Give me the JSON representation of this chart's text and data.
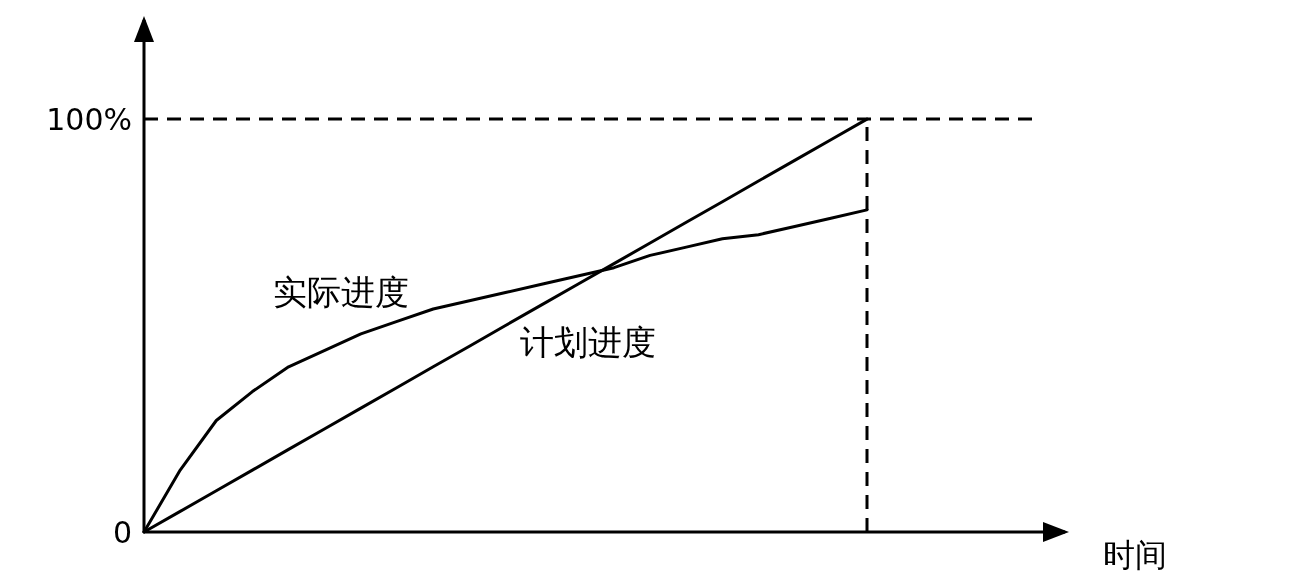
{
  "chart_data": {
    "type": "line",
    "annotations": [
      "时间"
    ],
    "categories": [
      null,
      null,
      null,
      null,
      null,
      null,
      null,
      null,
      null,
      null,
      null,
      null,
      null,
      null,
      null,
      null,
      null,
      null,
      null,
      null,
      null
    ],
    "series": [
      {
        "name": "实际进度",
        "color": "#000000",
        "values": [
          0,
          15,
          27,
          34,
          40,
          44,
          48,
          51,
          54,
          56,
          58,
          60,
          62,
          64,
          67,
          69,
          71,
          72,
          74,
          76,
          78
        ]
      },
      {
        "name": "计划进度",
        "color": "#000000",
        "values": [
          0,
          5,
          10,
          15,
          20,
          25,
          30,
          35,
          40,
          45,
          50,
          55,
          60,
          65,
          70,
          75,
          80,
          85,
          90,
          95,
          100
        ]
      }
    ],
    "ylim": [
      0,
      124
    ],
    "yticks": [
      {
        "value": 0,
        "label": "0"
      },
      {
        "value": 100,
        "label": "100%"
      }
    ],
    "tick_labels": "y",
    "grid": false,
    "legend": false,
    "marker": "none",
    "line_style": "solid",
    "ref_lines": [
      {
        "axis": "y",
        "value": 100,
        "line_style": "dashed",
        "color": "#000000"
      }
    ]
  }
}
